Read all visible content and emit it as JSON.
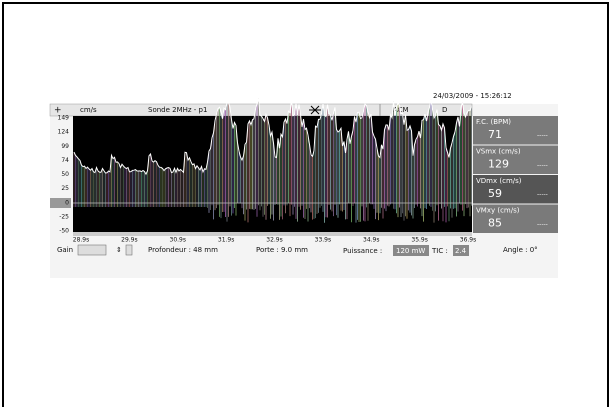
{
  "timestamp": "24/03/2009  -  15:26:12",
  "header": {
    "plus": "+",
    "unit": "cm/s",
    "probe": "Sonde 2MHz - p1",
    "vessel": "ACM",
    "side": "D"
  },
  "axis": {
    "y_labels": [
      "149",
      "124",
      "99",
      "74",
      "50",
      "25",
      "0",
      "-25",
      "-50"
    ],
    "x_labels": [
      "28.9s",
      "29.9s",
      "30.9s",
      "31.9s",
      "32.9s",
      "33.9s",
      "34.9s",
      "35.9s",
      "36.9s"
    ]
  },
  "measures": [
    {
      "label": "F.C. (BPM)",
      "value": "71",
      "extra": "-----"
    },
    {
      "label": "VSmx (cm/s)",
      "value": "129",
      "extra": "-----"
    },
    {
      "label": "VDmx (cm/s)",
      "value": "59",
      "extra": "-----"
    },
    {
      "label": "VMxy (cm/s)",
      "value": "85",
      "extra": "-----"
    }
  ],
  "footer": {
    "gain": "Gain",
    "depth": "Profondeur :  48 mm",
    "gate": "Porte : 9.0 mm",
    "power_label": "Puissance :",
    "power": "120 mW",
    "tic_label": "TIC :",
    "tic": "2.4",
    "angle": "Angle : 0°"
  }
}
